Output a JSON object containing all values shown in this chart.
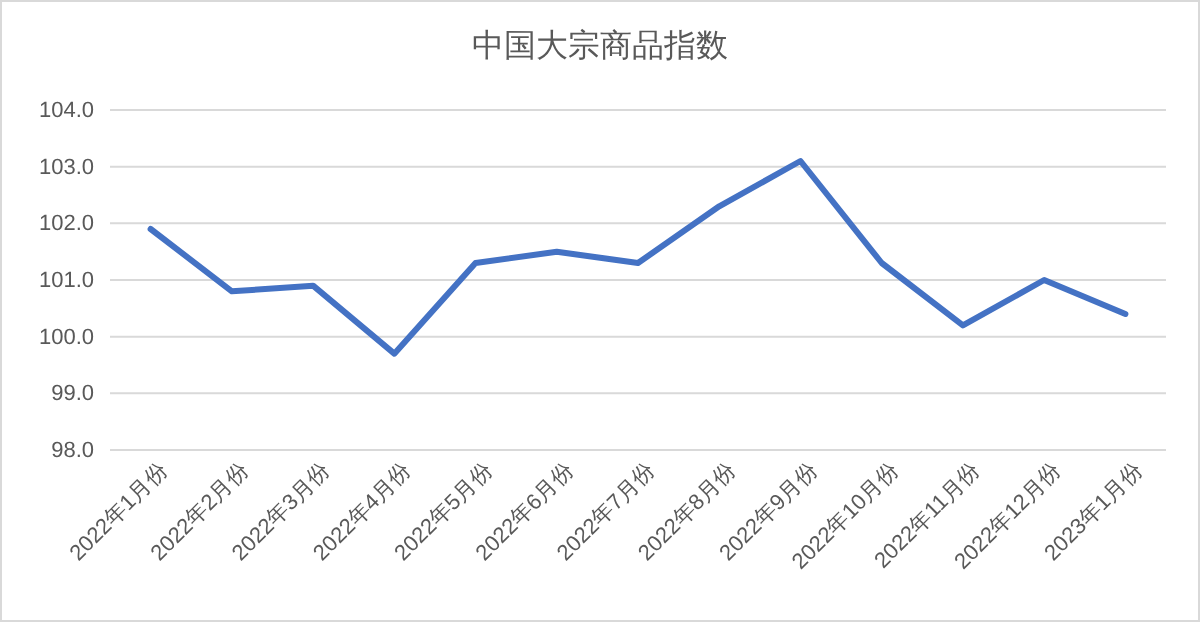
{
  "chart_data": {
    "type": "line",
    "title": "中国大宗商品指数",
    "categories": [
      "2022年1月份",
      "2022年2月份",
      "2022年3月份",
      "2022年4月份",
      "2022年5月份",
      "2022年6月份",
      "2022年7月份",
      "2022年8月份",
      "2022年9月份",
      "2022年10月份",
      "2022年11月份",
      "2022年12月份",
      "2023年1月份"
    ],
    "series": [
      {
        "color": "#4472c4",
        "values": [
          101.9,
          100.8,
          100.9,
          99.7,
          101.3,
          101.5,
          101.3,
          102.3,
          103.1,
          101.3,
          100.2,
          101.0,
          100.4
        ]
      }
    ],
    "ylim": [
      98,
      104
    ],
    "yticks": [
      {
        "value": 98,
        "label": "98.0"
      },
      {
        "value": 99,
        "label": "99.0"
      },
      {
        "value": 100,
        "label": "100.0"
      },
      {
        "value": 101,
        "label": "101.0"
      },
      {
        "value": 102,
        "label": "102.0"
      },
      {
        "value": 103,
        "label": "103.0"
      },
      {
        "value": 104,
        "label": "104.0"
      }
    ],
    "grid": "y",
    "marker": "none",
    "line_style": "solid"
  }
}
